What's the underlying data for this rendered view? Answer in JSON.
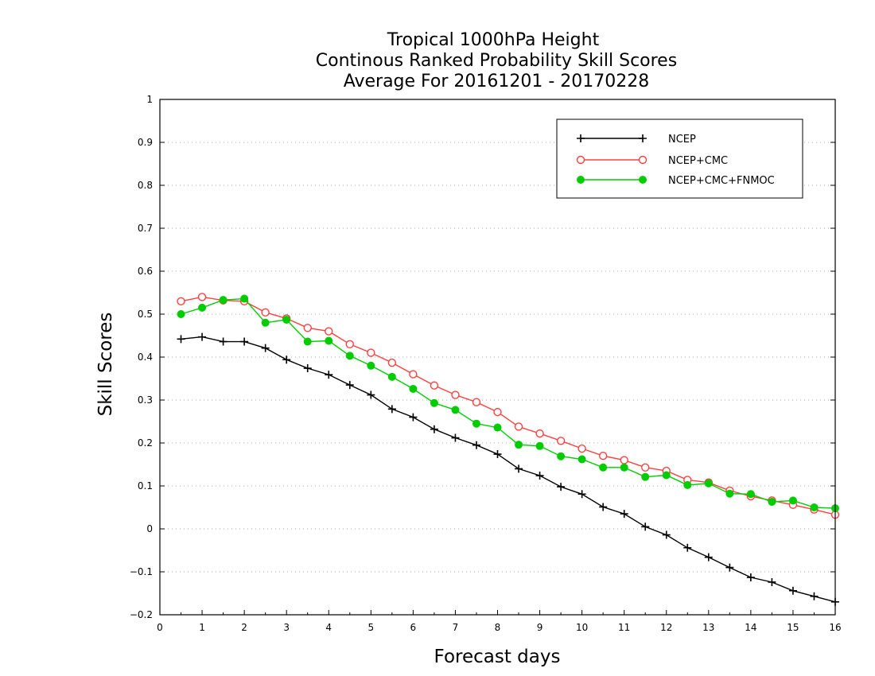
{
  "chart_data": {
    "type": "line",
    "title": [
      "Tropical 1000hPa Height",
      "Continous Ranked Probability Skill Scores",
      "Average For 20161201 - 20170228"
    ],
    "xlabel": "Forecast days",
    "ylabel": "Skill Scores",
    "xlim": [
      0,
      16
    ],
    "ylim": [
      -0.2,
      1
    ],
    "xticks": [
      "0",
      "1",
      "2",
      "3",
      "4",
      "5",
      "6",
      "7",
      "8",
      "9",
      "10",
      "11",
      "12",
      "13",
      "14",
      "15",
      "16"
    ],
    "yticks": [
      "−0.2",
      "−0.1",
      "0",
      "0.1",
      "0.2",
      "0.3",
      "0.4",
      "0.5",
      "0.6",
      "0.7",
      "0.8",
      "0.9",
      "1"
    ],
    "grid": "horizontal-dotted",
    "legend_position": "top-right",
    "x": [
      0.5,
      1,
      1.5,
      2,
      2.5,
      3,
      3.5,
      4,
      4.5,
      5,
      5.5,
      6,
      6.5,
      7,
      7.5,
      8,
      8.5,
      9,
      9.5,
      10,
      10.5,
      11,
      11.5,
      12,
      12.5,
      13,
      13.5,
      14,
      14.5,
      15,
      15.5,
      16
    ],
    "series": [
      {
        "name": "NCEP",
        "color": "#000000",
        "marker": "plus",
        "values": [
          0.442,
          0.447,
          0.436,
          0.436,
          0.421,
          0.394,
          0.374,
          0.359,
          0.335,
          0.312,
          0.279,
          0.26,
          0.232,
          0.212,
          0.195,
          0.174,
          0.14,
          0.124,
          0.098,
          0.081,
          0.051,
          0.035,
          0.005,
          -0.014,
          -0.044,
          -0.066,
          -0.09,
          -0.113,
          -0.124,
          -0.144,
          -0.157,
          -0.17
        ]
      },
      {
        "name": "NCEP+CMC",
        "color": "#ff4040",
        "marker": "open-circle",
        "values": [
          0.53,
          0.54,
          0.532,
          0.53,
          0.504,
          0.49,
          0.468,
          0.46,
          0.43,
          0.41,
          0.387,
          0.36,
          0.334,
          0.312,
          0.295,
          0.272,
          0.238,
          0.222,
          0.205,
          0.187,
          0.17,
          0.16,
          0.143,
          0.135,
          0.114,
          0.108,
          0.089,
          0.076,
          0.066,
          0.056,
          0.045,
          0.033
        ]
      },
      {
        "name": "NCEP+CMC+FNMOC",
        "color": "#00cc00",
        "marker": "filled-circle",
        "values": [
          0.5,
          0.515,
          0.533,
          0.536,
          0.48,
          0.487,
          0.436,
          0.438,
          0.403,
          0.38,
          0.354,
          0.326,
          0.293,
          0.277,
          0.245,
          0.236,
          0.196,
          0.193,
          0.169,
          0.162,
          0.143,
          0.143,
          0.121,
          0.125,
          0.102,
          0.106,
          0.082,
          0.081,
          0.063,
          0.066,
          0.05,
          0.048
        ]
      }
    ]
  }
}
